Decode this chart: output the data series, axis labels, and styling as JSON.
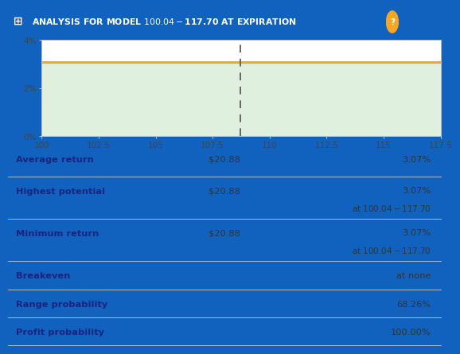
{
  "title_part1": "⊞ ANALYSIS FOR MODEL $100.04-$117.70 AT EXPIRATION",
  "title_bg": "#1161BE",
  "title_color": "#FFFFFF",
  "question_mark_color": "#F5A623",
  "x_min": 100,
  "x_max": 117.5,
  "x_ticks": [
    100,
    102.5,
    105,
    107.5,
    110,
    112.5,
    115,
    117.5
  ],
  "y_min": 0,
  "y_max": 4,
  "y_ticks": [
    0,
    2,
    4
  ],
  "y_tick_labels": [
    "0%",
    "2%",
    "4%"
  ],
  "payoff_value": 3.07,
  "payoff_color": "#F5A623",
  "fill_color": "#DFF0DE",
  "dashed_line_x": 108.7,
  "dashed_color": "#666666",
  "chart_bg": "#FFFFFF",
  "outer_bg": "#1161BE",
  "table_rows": [
    {
      "label": "Average return",
      "mid_val": "$20.88",
      "right_val": "3.07%",
      "sub_val": "",
      "bg": "#D6E9F8",
      "label_color": "#1a237e",
      "val_color": "#333333"
    },
    {
      "label": "Highest potential",
      "mid_val": "$20.88",
      "right_val": "3.07%",
      "sub_val": "at $100.04-$117.70",
      "bg": "#DFF0DE",
      "label_color": "#1a237e",
      "val_color": "#333333"
    },
    {
      "label": "Minimum return",
      "mid_val": "$20.88",
      "right_val": "3.07%",
      "sub_val": "at $100.04-$117.70",
      "bg": "#FAE0E0",
      "label_color": "#1a237e",
      "val_color": "#333333"
    },
    {
      "label": "Breakeven",
      "mid_val": "",
      "right_val": "at none",
      "sub_val": "",
      "bg": "#FFFFFF",
      "label_color": "#1a237e",
      "val_color": "#333333"
    },
    {
      "label": "Range probability",
      "mid_val": "",
      "right_val": "68.26%",
      "sub_val": "",
      "bg": "#F2F2F2",
      "label_color": "#1a237e",
      "val_color": "#333333"
    },
    {
      "label": "Profit probability",
      "mid_val": "",
      "right_val": "100.00%",
      "sub_val": "",
      "bg": "#FFFFFF",
      "label_color": "#1a237e",
      "val_color": "#333333"
    }
  ]
}
